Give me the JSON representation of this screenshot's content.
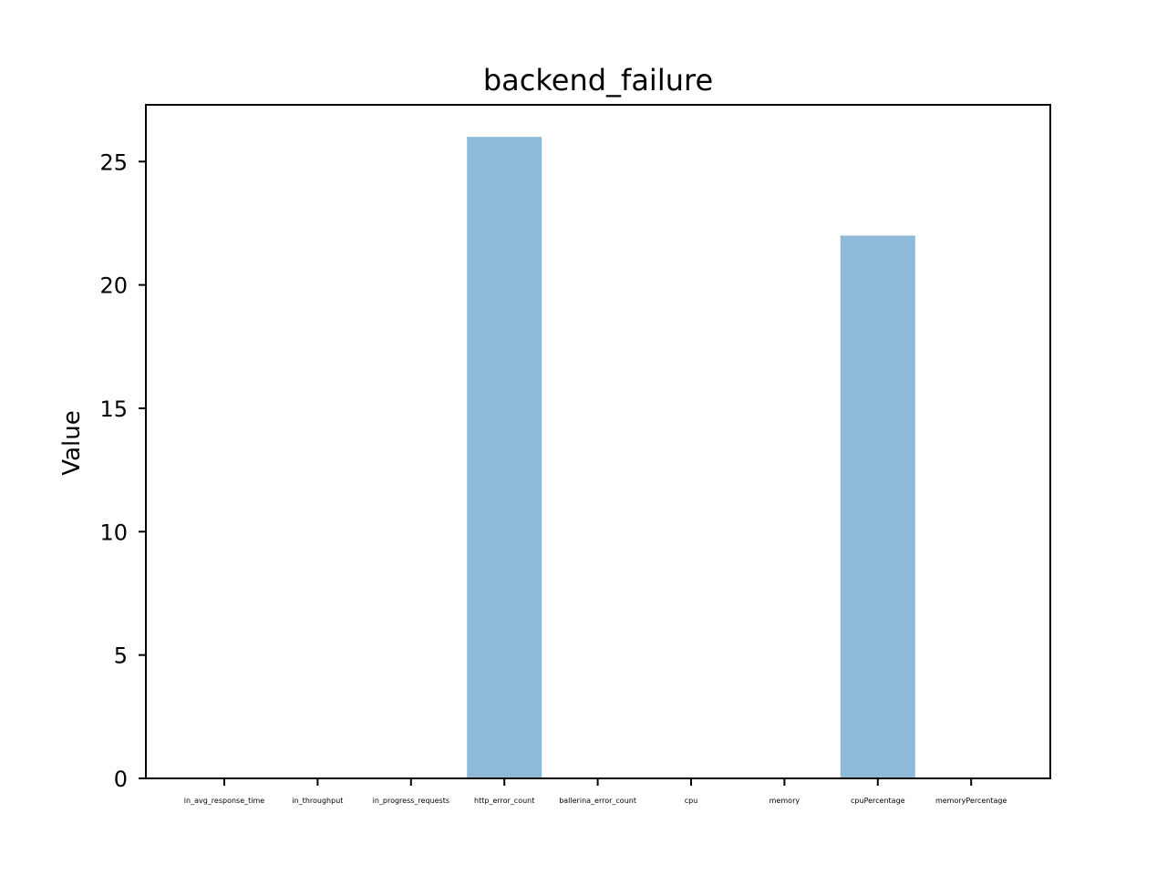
{
  "chart_data": {
    "type": "bar",
    "title": "backend_failure",
    "xlabel": "",
    "ylabel": "Value",
    "categories": [
      "in_avg_response_time",
      "in_throughput",
      "in_progress_requests",
      "http_error_count",
      "ballerina_error_count",
      "cpu",
      "memory",
      "cpuPercentage",
      "memoryPercentage"
    ],
    "values": [
      0,
      0,
      0,
      26,
      0,
      0,
      0,
      22,
      0
    ],
    "ylim": [
      0,
      27.3
    ],
    "yticks": [
      0,
      5,
      10,
      15,
      20,
      25
    ],
    "grid": false,
    "bar_color": "#8fb9d9"
  }
}
